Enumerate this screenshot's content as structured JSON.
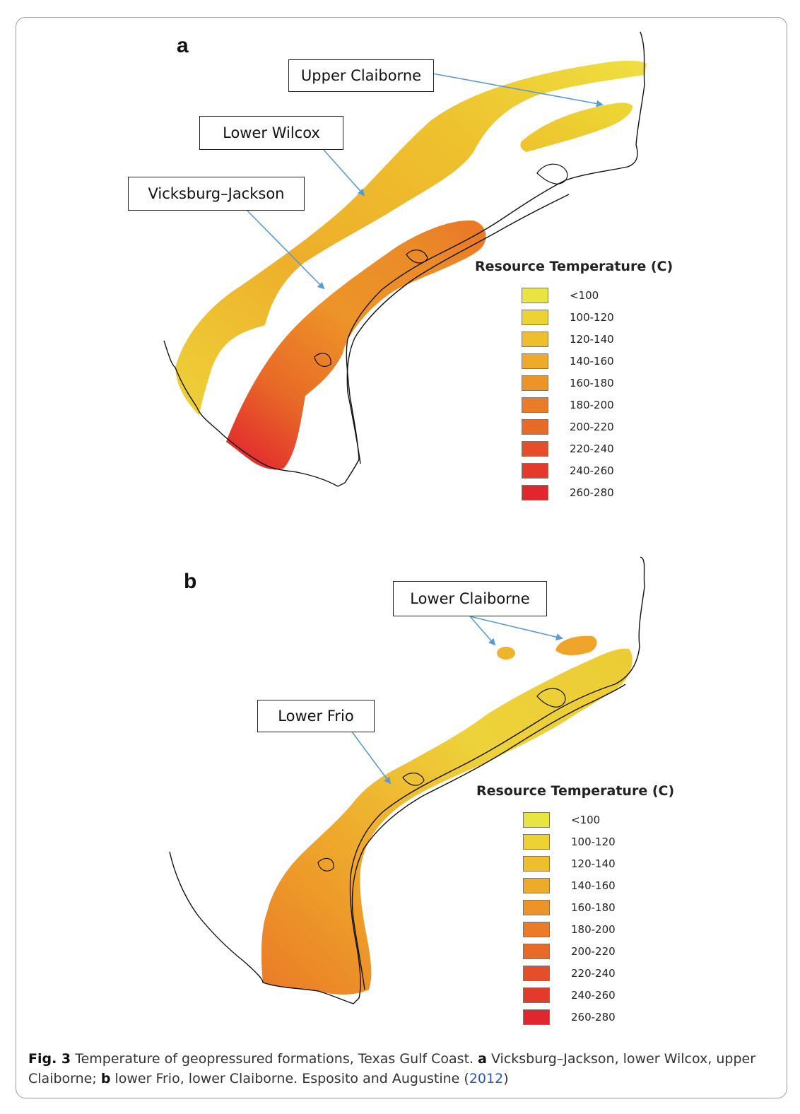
{
  "panels": [
    {
      "letter": "a",
      "legend_title": "Resource Temperature (C)",
      "callouts": [
        "Upper Claiborne",
        "Lower Wilcox",
        "Vicksburg–Jackson"
      ]
    },
    {
      "letter": "b",
      "legend_title": "Resource Temperature (C)",
      "callouts": [
        "Lower Claiborne",
        "Lower Frio"
      ]
    }
  ],
  "legend": {
    "classes": [
      {
        "label": "<100",
        "color": "#e8e441"
      },
      {
        "label": "100-120",
        "color": "#ecd232"
      },
      {
        "label": "120-140",
        "color": "#eebe2c"
      },
      {
        "label": "140-160",
        "color": "#eeab2a"
      },
      {
        "label": "160-180",
        "color": "#ed9428"
      },
      {
        "label": "180-200",
        "color": "#ea7c27"
      },
      {
        "label": "200-220",
        "color": "#e86a27"
      },
      {
        "label": "220-240",
        "color": "#e54e28"
      },
      {
        "label": "240-260",
        "color": "#e33a2b"
      },
      {
        "label": "260-280",
        "color": "#e2262e"
      }
    ]
  },
  "caption": {
    "fig_label": "Fig. 3",
    "text1": " Temperature of geopressured formations, Texas Gulf Coast. ",
    "a_letter": "a",
    "text2": " Vicksburg–Jackson, lower Wilcox, upper Claiborne; ",
    "b_letter": "b",
    "text3": " lower Frio, lower Claiborne. Esposito and Augustine (",
    "year": "2012",
    "text4": ")"
  },
  "colors": {
    "arrow": "#5b9bd5",
    "coast": "#111111"
  }
}
